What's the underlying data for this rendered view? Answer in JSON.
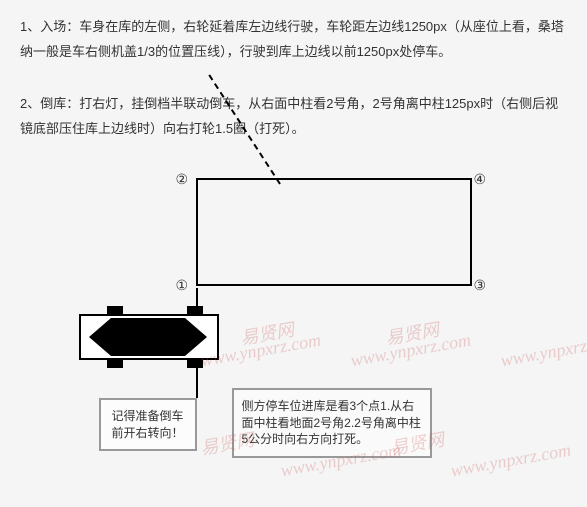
{
  "paragraphs": {
    "p1": "1、入场：车身在库的左侧，右轮延着库左边线行驶，车轮距左边线1250px（从座位上看，桑塔纳一般是车右侧机盖1/3的位置压线），行驶到库上边线以前1250px处停车。",
    "p2": "2、倒库：打右灯，挂倒档半联动倒车，从右面中柱看2号角，2号角离中柱125px时（右侧后视镜底部压住库上边线时）向右打轮1.5圈（打死）。"
  },
  "diagram": {
    "corners": {
      "c1": "①",
      "c2": "②",
      "c3": "③",
      "c4": "④"
    },
    "callout1": "记得准备倒车前开右转向！",
    "callout2": "侧方停车位进库是看3个点1.从右面中柱看地面2号角2.2号角离中柱5公分时向右方向打死。"
  },
  "watermarks": {
    "text1": "易贤网",
    "text2": "www.ynpxrz.com"
  },
  "colors": {
    "background": "#f5f5f5",
    "text": "#333333",
    "border": "#000000",
    "calloutBorder": "#999999",
    "watermark": "rgba(200,80,80,0.25)"
  }
}
